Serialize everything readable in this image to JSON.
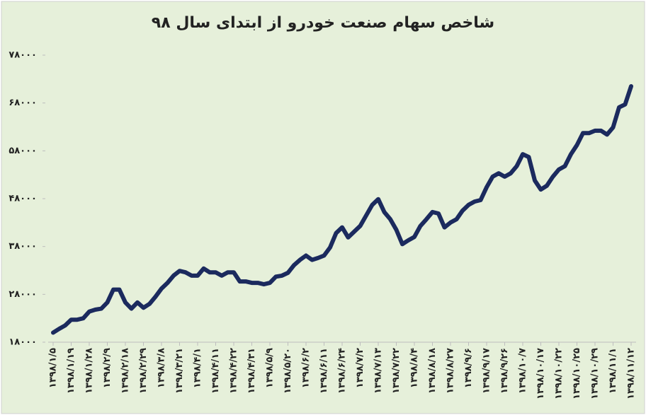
{
  "chart_data": {
    "type": "line",
    "title": "شاخص سهام صنعت خودرو از ابتدای سال ۹۸",
    "categories": [
      "۱۳۹۸/۱/۵",
      null,
      null,
      "۱۳۹۸/۱/۱۹",
      null,
      null,
      "۱۳۹۸/۱/۲۸",
      null,
      null,
      "۱۳۹۸/۲/۹",
      null,
      null,
      "۱۳۹۸/۲/۱۸",
      null,
      null,
      "۱۳۹۸/۲/۲۹",
      null,
      null,
      "۱۳۹۸/۳/۸",
      null,
      null,
      "۱۳۹۸/۳/۲۱",
      null,
      null,
      "۱۳۹۸/۴/۱",
      null,
      null,
      "۱۳۹۸/۴/۱۱",
      null,
      null,
      "۱۳۹۸/۴/۲۲",
      null,
      null,
      "۱۳۹۸/۴/۳۱",
      null,
      null,
      "۱۳۹۸/۵/۹",
      null,
      null,
      "۱۳۹۸/۵/۲۰",
      null,
      null,
      "۱۳۹۸/۶/۲",
      null,
      null,
      "۱۳۹۸/۶/۱۱",
      null,
      null,
      "۱۳۹۸/۶/۲۴",
      null,
      null,
      "۱۳۹۸/۷/۲",
      null,
      null,
      "۱۳۹۸/۷/۱۳",
      null,
      null,
      "۱۳۹۸/۷/۲۲",
      null,
      null,
      "۱۳۹۸/۸/۴",
      null,
      null,
      "۱۳۹۸/۸/۱۸",
      null,
      null,
      "۱۳۹۸/۸/۲۷",
      null,
      null,
      "۱۳۹۸/۹/۶",
      null,
      null,
      "۱۳۹۸/۹/۱۷",
      null,
      null,
      "۱۳۹۸/۹/۲۶",
      null,
      null,
      "۱۳۹۸/۱۰/۷",
      null,
      null,
      "۱۳۹۸/۱۰/۱۷",
      null,
      null,
      "۱۳۹۸/۱۰/۲۲",
      null,
      null,
      "۱۳۹۸/۱۰/۲۵",
      null,
      null,
      "۱۳۹۸/۱۰/۲۹",
      null,
      null,
      "۱۳۹۸/۱۱/۱",
      null,
      null,
      "۱۳۹۸/۱۱/۱۲"
    ],
    "series": [
      {
        "color": "#1b2a5e",
        "values": [
          20000,
          20800,
          21500,
          22700,
          22700,
          23000,
          24400,
          24800,
          25000,
          26300,
          29000,
          29000,
          26300,
          25000,
          26300,
          25200,
          26000,
          27500,
          29200,
          30400,
          31900,
          32900,
          32600,
          31900,
          31900,
          33400,
          32600,
          32600,
          31900,
          32600,
          32600,
          30700,
          30700,
          30400,
          30400,
          30100,
          30400,
          31700,
          31900,
          32500,
          34100,
          35200,
          36100,
          35200,
          35600,
          36100,
          37800,
          40800,
          42000,
          39900,
          41100,
          42300,
          44500,
          46700,
          47900,
          45200,
          43700,
          41500,
          38500,
          39300,
          40000,
          42300,
          43700,
          45200,
          44900,
          42000,
          43000,
          43700,
          45500,
          46700,
          47400,
          47700,
          50400,
          52600,
          53300,
          52600,
          53300,
          54800,
          57300,
          56700,
          51800,
          49900,
          50700,
          52600,
          54100,
          54800,
          57300,
          59200,
          61700,
          61700,
          62200,
          62200,
          61400,
          62900,
          67100,
          67700,
          71500
        ]
      }
    ],
    "ylim": [
      18000,
      78000
    ],
    "yticks": [
      {
        "value": 18000,
        "label": "۱۸۰۰۰"
      },
      {
        "value": 28000,
        "label": "۲۸۰۰۰"
      },
      {
        "value": 38000,
        "label": "۳۸۰۰۰"
      },
      {
        "value": 48000,
        "label": "۴۸۰۰۰"
      },
      {
        "value": 58000,
        "label": "۵۸۰۰۰"
      },
      {
        "value": 68000,
        "label": "۶۸۰۰۰"
      },
      {
        "value": 78000,
        "label": "۷۸۰۰۰"
      }
    ]
  }
}
